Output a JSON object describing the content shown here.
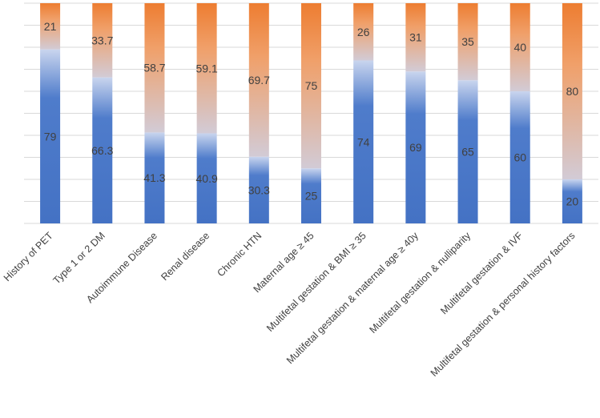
{
  "chart_data": {
    "type": "bar",
    "stacked": true,
    "title": "",
    "xlabel": "",
    "ylabel": "",
    "ylim": [
      0,
      100
    ],
    "grid": true,
    "categories": [
      "History of PET",
      "Type 1 or 2 DM",
      "Autoimmune Disease",
      "Renal disease",
      "Chronic HTN",
      "Maternal age ≥ 45",
      "Multifetal gestation & BMI ≥ 35",
      "Multifetal gestation & maternal age ≥ 40y",
      "Multifetal gestation & nulliparity",
      "Multifetal gestation & IVF",
      "Multifetal gestation & personal history factors"
    ],
    "series": [
      {
        "name": "",
        "values": [
          79,
          66.3,
          41.3,
          40.9,
          30.3,
          25,
          74,
          69,
          65,
          60,
          20
        ]
      },
      {
        "name": "",
        "values": [
          21,
          33.7,
          58.7,
          59.1,
          69.7,
          75,
          26,
          31,
          35,
          40,
          80
        ]
      }
    ],
    "labels": [
      [
        "79",
        "66.3",
        "41.3",
        "40.9",
        "30.3",
        "25",
        "74",
        "69",
        "65",
        "60",
        "20"
      ],
      [
        "21",
        "33.7",
        "58.7",
        "59.1",
        "69.7",
        "75",
        "26",
        "31",
        "35",
        "40",
        "80"
      ]
    ],
    "colors": {
      "bottom": "#4472c4",
      "top": "#ed7d31",
      "grid": "#d9d9d9",
      "text": "#404040"
    }
  }
}
